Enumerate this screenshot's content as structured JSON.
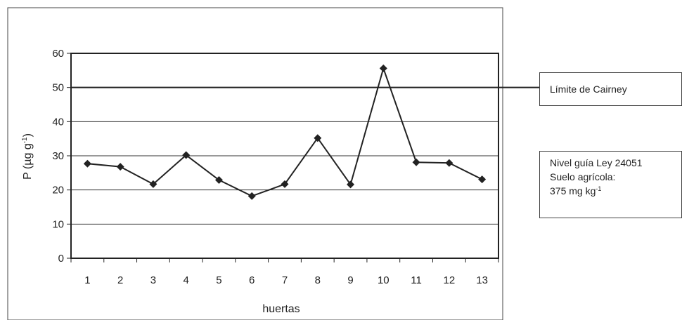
{
  "chart_data": {
    "type": "line",
    "categories": [
      "1",
      "2",
      "3",
      "4",
      "5",
      "6",
      "7",
      "8",
      "9",
      "10",
      "11",
      "12",
      "13"
    ],
    "series": [
      {
        "values": [
          27.7,
          26.8,
          21.7,
          30.2,
          22.9,
          18.2,
          21.7,
          35.2,
          21.6,
          55.6,
          28.1,
          27.9,
          23.1
        ]
      }
    ],
    "reference_line": {
      "value": 50,
      "color": "#222222"
    },
    "xlabel": "huertas",
    "ylabel_main": "P (µg g",
    "ylabel_sup": "-1",
    "ylabel_close": ")",
    "ylim": [
      0,
      60
    ],
    "yticks": [
      "0",
      "10",
      "20",
      "30",
      "40",
      "50",
      "60"
    ],
    "grid": "horizontal",
    "marker": "diamond",
    "line_color": "#222222"
  },
  "annotations": {
    "limit_label": "Límite de Cairney",
    "guide_line1": "Nivel guía Ley 24051",
    "guide_line2": "Suelo agrícola:",
    "guide_line3_main": "375 mg kg",
    "guide_line3_sup": "-1"
  }
}
